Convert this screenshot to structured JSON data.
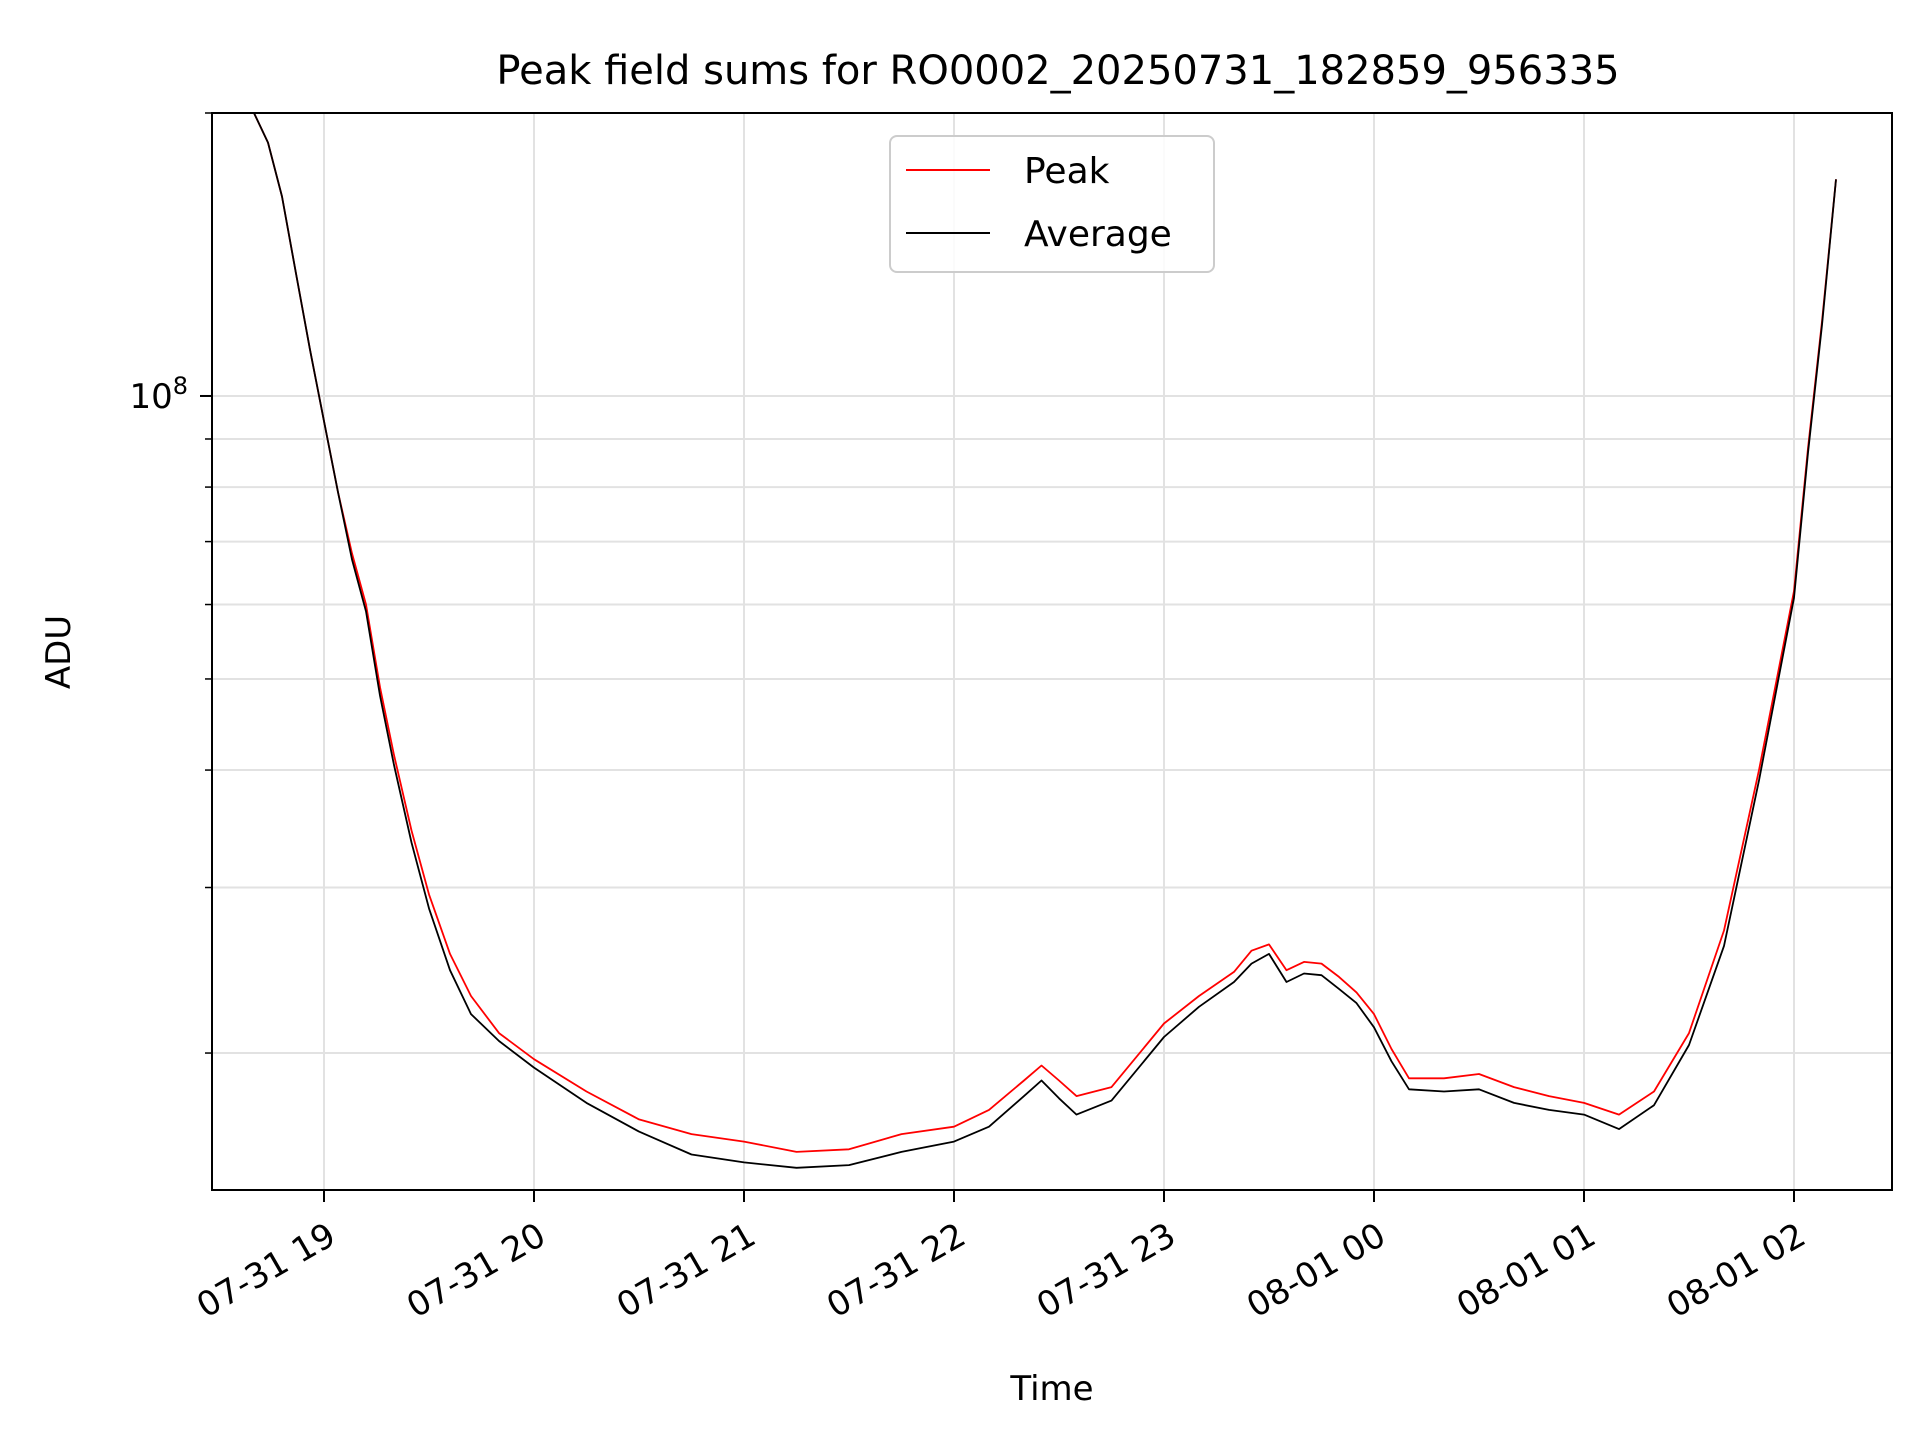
{
  "chart_data": {
    "type": "line",
    "title": "Peak field sums for RO0002_20250731_182859_956335",
    "xlabel": "Time",
    "ylabel": "ADU",
    "yscale": "log",
    "x_format": "MM-DD HH",
    "xlim": [
      "2025-07-31 18:28",
      "2025-08-01 02:28"
    ],
    "ylim": [
      14300000,
      200000000
    ],
    "x_tick_labels": [
      {
        "value": "2025-07-31 19:00",
        "label": "07-31 19"
      },
      {
        "value": "2025-07-31 20:00",
        "label": "07-31 20"
      },
      {
        "value": "2025-07-31 21:00",
        "label": "07-31 21"
      },
      {
        "value": "2025-07-31 22:00",
        "label": "07-31 22"
      },
      {
        "value": "2025-07-31 23:00",
        "label": "07-31 23"
      },
      {
        "value": "2025-08-01 00:00",
        "label": "08-01 00"
      },
      {
        "value": "2025-08-01 01:00",
        "label": "08-01 01"
      },
      {
        "value": "2025-08-01 02:00",
        "label": "08-01 02"
      }
    ],
    "y_tick_labels": [
      {
        "value": 100000000,
        "base": "10",
        "exponent": "8"
      }
    ],
    "y_minor_ticks": [
      20000000,
      30000000,
      40000000,
      50000000,
      60000000,
      70000000,
      80000000,
      90000000,
      200000000
    ],
    "grid": true,
    "legend_position": "top-center",
    "series": [
      {
        "name": "Peak",
        "color": "#ff0000",
        "x": [
          "2025-07-31 18:40",
          "2025-07-31 18:44",
          "2025-07-31 18:48",
          "2025-07-31 18:52",
          "2025-07-31 18:56",
          "2025-07-31 19:00",
          "2025-07-31 19:04",
          "2025-07-31 19:08",
          "2025-07-31 19:12",
          "2025-07-31 19:16",
          "2025-07-31 19:20",
          "2025-07-31 19:25",
          "2025-07-31 19:30",
          "2025-07-31 19:36",
          "2025-07-31 19:42",
          "2025-07-31 19:50",
          "2025-07-31 20:00",
          "2025-07-31 20:15",
          "2025-07-31 20:30",
          "2025-07-31 20:45",
          "2025-07-31 21:00",
          "2025-07-31 21:15",
          "2025-07-31 21:30",
          "2025-07-31 21:45",
          "2025-07-31 22:00",
          "2025-07-31 22:10",
          "2025-07-31 22:20",
          "2025-07-31 22:25",
          "2025-07-31 22:30",
          "2025-07-31 22:35",
          "2025-07-31 22:45",
          "2025-07-31 23:00",
          "2025-07-31 23:10",
          "2025-07-31 23:20",
          "2025-07-31 23:25",
          "2025-07-31 23:30",
          "2025-07-31 23:35",
          "2025-07-31 23:40",
          "2025-07-31 23:45",
          "2025-07-31 23:50",
          "2025-07-31 23:55",
          "2025-08-01 00:00",
          "2025-08-01 00:05",
          "2025-08-01 00:10",
          "2025-08-01 00:20",
          "2025-08-01 00:30",
          "2025-08-01 00:40",
          "2025-08-01 00:50",
          "2025-08-01 01:00",
          "2025-08-01 01:10",
          "2025-08-01 01:20",
          "2025-08-01 01:30",
          "2025-08-01 01:40",
          "2025-08-01 01:50",
          "2025-08-01 02:00",
          "2025-08-01 02:04",
          "2025-08-01 02:08",
          "2025-08-01 02:12"
        ],
        "y": [
          200000000,
          186000000,
          163000000,
          135000000,
          112000000,
          94000000,
          79000000,
          68000000,
          60000000,
          49000000,
          41500000,
          34500000,
          29500000,
          25500000,
          23000000,
          21000000,
          19700000,
          18200000,
          17000000,
          16400000,
          16100000,
          15700000,
          15800000,
          16400000,
          16700000,
          17400000,
          18700000,
          19400000,
          18700000,
          18000000,
          18400000,
          21500000,
          23000000,
          24400000,
          25700000,
          26100000,
          24500000,
          25000000,
          24900000,
          24100000,
          23200000,
          22000000,
          20200000,
          18800000,
          18800000,
          19000000,
          18400000,
          18000000,
          17700000,
          17200000,
          18200000,
          21000000,
          27000000,
          40000000,
          62000000,
          88000000,
          120000000,
          170000000
        ]
      },
      {
        "name": "Average",
        "color": "#000000",
        "x": [
          "2025-07-31 18:40",
          "2025-07-31 18:44",
          "2025-07-31 18:48",
          "2025-07-31 18:52",
          "2025-07-31 18:56",
          "2025-07-31 19:00",
          "2025-07-31 19:04",
          "2025-07-31 19:08",
          "2025-07-31 19:12",
          "2025-07-31 19:16",
          "2025-07-31 19:20",
          "2025-07-31 19:25",
          "2025-07-31 19:30",
          "2025-07-31 19:36",
          "2025-07-31 19:42",
          "2025-07-31 19:50",
          "2025-07-31 20:00",
          "2025-07-31 20:15",
          "2025-07-31 20:30",
          "2025-07-31 20:45",
          "2025-07-31 21:00",
          "2025-07-31 21:15",
          "2025-07-31 21:30",
          "2025-07-31 21:45",
          "2025-07-31 22:00",
          "2025-07-31 22:10",
          "2025-07-31 22:20",
          "2025-07-31 22:25",
          "2025-07-31 22:30",
          "2025-07-31 22:35",
          "2025-07-31 22:45",
          "2025-07-31 23:00",
          "2025-07-31 23:10",
          "2025-07-31 23:20",
          "2025-07-31 23:25",
          "2025-07-31 23:30",
          "2025-07-31 23:35",
          "2025-07-31 23:40",
          "2025-07-31 23:45",
          "2025-07-31 23:50",
          "2025-07-31 23:55",
          "2025-08-01 00:00",
          "2025-08-01 00:05",
          "2025-08-01 00:10",
          "2025-08-01 00:20",
          "2025-08-01 00:30",
          "2025-08-01 00:40",
          "2025-08-01 00:50",
          "2025-08-01 01:00",
          "2025-08-01 01:10",
          "2025-08-01 01:20",
          "2025-08-01 01:30",
          "2025-08-01 01:40",
          "2025-08-01 01:50",
          "2025-08-01 02:00",
          "2025-08-01 02:04",
          "2025-08-01 02:08",
          "2025-08-01 02:12"
        ],
        "y": [
          200000000,
          186000000,
          163000000,
          135000000,
          112000000,
          94000000,
          79000000,
          67000000,
          59000000,
          48000000,
          40500000,
          33500000,
          28500000,
          24500000,
          22000000,
          20600000,
          19300000,
          17700000,
          16500000,
          15600000,
          15300000,
          15100000,
          15200000,
          15700000,
          16100000,
          16700000,
          18000000,
          18700000,
          17900000,
          17200000,
          17800000,
          20800000,
          22400000,
          23800000,
          24900000,
          25500000,
          23800000,
          24300000,
          24200000,
          23400000,
          22600000,
          21300000,
          19600000,
          18300000,
          18200000,
          18300000,
          17700000,
          17400000,
          17200000,
          16600000,
          17600000,
          20400000,
          26000000,
          39000000,
          61000000,
          87000000,
          119000000,
          170000000
        ]
      }
    ]
  }
}
